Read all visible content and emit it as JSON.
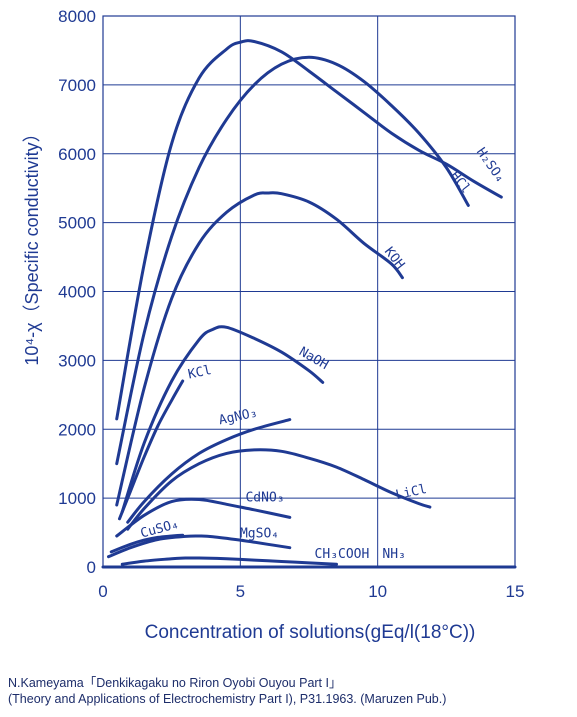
{
  "colors": {
    "line": "#1f3a93",
    "axis_text": "#1f3a93",
    "grid": "#1f3a93",
    "caption": "#1d2d6a"
  },
  "chart_data": {
    "type": "line",
    "xlabel": "Concentration of solutions(gEq/l(18°C))",
    "ylabel": "10⁴-χ（Specific conductivity）",
    "xlim": [
      0,
      15
    ],
    "ylim": [
      0,
      8000
    ],
    "x_ticks": [
      "0",
      "5",
      "10",
      "15"
    ],
    "y_ticks": [
      "0",
      "1000",
      "2000",
      "3000",
      "4000",
      "5000",
      "6000",
      "7000",
      "8000"
    ],
    "grid": true,
    "series": [
      {
        "name": "H2SO4",
        "x": [
          0.5,
          1.5,
          2.5,
          3.5,
          4.5,
          5.0,
          5.5,
          6.5,
          7.5,
          8.5,
          9.5,
          10.5,
          11.5,
          12.5,
          13.5,
          14.5
        ],
        "y": [
          2150,
          4400,
          6150,
          7100,
          7520,
          7620,
          7630,
          7480,
          7200,
          6900,
          6600,
          6300,
          6050,
          5850,
          5600,
          5370
        ]
      },
      {
        "name": "HCl",
        "x": [
          0.5,
          1.5,
          2.5,
          3.5,
          4.5,
          5.5,
          6.5,
          7.5,
          8.5,
          9.5,
          10.5,
          11.5,
          12.5,
          13.3
        ],
        "y": [
          1500,
          3400,
          4800,
          5800,
          6500,
          7000,
          7300,
          7400,
          7300,
          7050,
          6700,
          6300,
          5800,
          5250
        ]
      },
      {
        "name": "KOH",
        "x": [
          0.5,
          1.5,
          2.5,
          3.5,
          4.5,
          5.5,
          6.0,
          6.5,
          7.5,
          8.5,
          9.5,
          10.5,
          10.9
        ],
        "y": [
          900,
          2600,
          3900,
          4700,
          5150,
          5400,
          5430,
          5420,
          5300,
          5050,
          4700,
          4400,
          4200
        ]
      },
      {
        "name": "NaOH",
        "x": [
          0.7,
          1.5,
          2.5,
          3.5,
          4.0,
          4.5,
          5.5,
          6.5,
          7.5,
          8.0
        ],
        "y": [
          800,
          1800,
          2700,
          3300,
          3450,
          3480,
          3320,
          3120,
          2850,
          2680
        ]
      },
      {
        "name": "KCl",
        "x": [
          0.6,
          1.0,
          1.5,
          2.0,
          2.5,
          2.9
        ],
        "y": [
          700,
          1100,
          1600,
          2050,
          2420,
          2700
        ]
      },
      {
        "name": "AgNO3",
        "x": [
          0.9,
          1.5,
          2.5,
          3.5,
          4.5,
          5.5,
          6.8
        ],
        "y": [
          650,
          950,
          1350,
          1650,
          1850,
          2000,
          2140
        ]
      },
      {
        "name": "LiCl",
        "x": [
          0.9,
          1.5,
          2.5,
          3.5,
          4.5,
          5.5,
          6.5,
          7.5,
          8.5,
          9.5,
          10.5,
          11.5,
          11.9
        ],
        "y": [
          550,
          850,
          1250,
          1500,
          1650,
          1700,
          1680,
          1580,
          1450,
          1270,
          1080,
          920,
          870
        ]
      },
      {
        "name": "CdNO3",
        "x": [
          0.5,
          1.5,
          2.5,
          3.5,
          4.5,
          5.5,
          6.8
        ],
        "y": [
          450,
          750,
          950,
          980,
          910,
          830,
          720
        ]
      },
      {
        "name": "CuSO4",
        "x": [
          0.3,
          1.0,
          1.5,
          2.0,
          2.5,
          2.9
        ],
        "y": [
          220,
          330,
          390,
          430,
          450,
          460
        ]
      },
      {
        "name": "MgSO4",
        "x": [
          0.2,
          1.0,
          2.0,
          3.0,
          3.5,
          4.0,
          5.0,
          6.0,
          6.8
        ],
        "y": [
          150,
          280,
          400,
          445,
          450,
          440,
          390,
          330,
          280
        ]
      },
      {
        "name": "CH3COOH",
        "x": [
          0.7,
          1.5,
          2.5,
          3.0,
          3.5,
          4.5,
          5.5,
          6.5,
          7.5,
          8.5
        ],
        "y": [
          40,
          85,
          120,
          130,
          130,
          120,
          100,
          80,
          60,
          40
        ]
      },
      {
        "name": "NH3",
        "x": [
          0,
          15
        ],
        "y": [
          0,
          0
        ]
      }
    ],
    "annotations": [
      {
        "text": "H₂SO₄",
        "x": 14.0,
        "y": 5800,
        "rotate": 55
      },
      {
        "text": "HCl",
        "x": 12.9,
        "y": 5550,
        "rotate": 52
      },
      {
        "text": "KOH",
        "x": 10.5,
        "y": 4450,
        "rotate": 52
      },
      {
        "text": "NaOH",
        "x": 7.6,
        "y": 2980,
        "rotate": 30
      },
      {
        "text": "KCl",
        "x": 3.55,
        "y": 2770,
        "rotate": -12
      },
      {
        "text": "AgNO₃",
        "x": 4.95,
        "y": 2130,
        "rotate": -12
      },
      {
        "text": "LiCl",
        "x": 11.25,
        "y": 1030,
        "rotate": -12
      },
      {
        "text": "CdNO₃",
        "x": 5.9,
        "y": 950,
        "rotate": 0
      },
      {
        "text": "CuSO₄",
        "x": 2.1,
        "y": 500,
        "rotate": -15
      },
      {
        "text": "MgSO₄",
        "x": 5.7,
        "y": 430,
        "rotate": 0
      },
      {
        "text": "CH₃COOH",
        "x": 8.7,
        "y": 130,
        "rotate": 0
      },
      {
        "text": "NH₃",
        "x": 10.6,
        "y": 130,
        "rotate": 0
      }
    ]
  },
  "caption": {
    "line1": "N.Kameyama「Denkikagaku no Riron Oyobi Ouyou Part I」",
    "line2": "(Theory and Applications of Electrochemistry Part I), P31.1963. (Maruzen Pub.)"
  }
}
